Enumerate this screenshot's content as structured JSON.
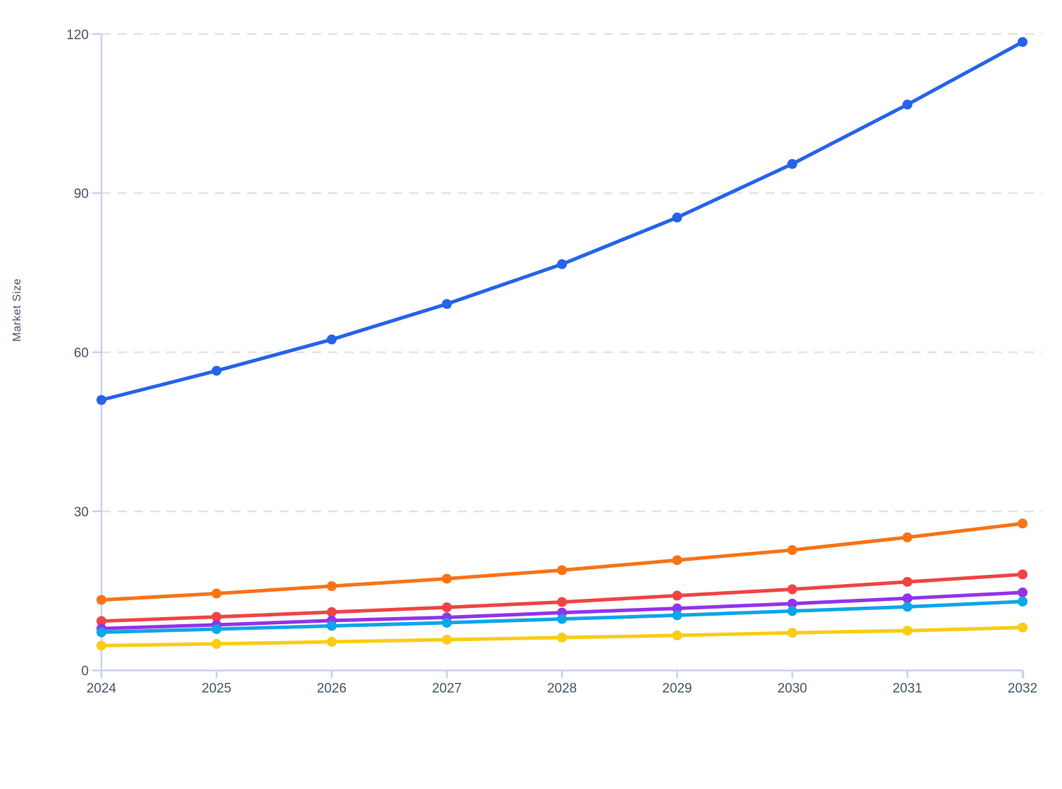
{
  "chart": {
    "ylabel": "Market Size",
    "colors": {
      "background": "#ffffff",
      "axis": "#c7d2f0",
      "grid": "#e3e3e3",
      "tick_text": "#475569"
    }
  },
  "chart_data": {
    "type": "line",
    "title": "",
    "xlabel": "",
    "ylabel": "Market Size",
    "x": [
      2024,
      2025,
      2026,
      2027,
      2028,
      2029,
      2030,
      2031,
      2032
    ],
    "series": [
      {
        "name": "blue-series",
        "color": "#2563eb",
        "values": [
          51.0,
          56.5,
          62.4,
          69.1,
          76.6,
          85.4,
          95.5,
          106.7,
          118.5
        ]
      },
      {
        "name": "orange-series",
        "color": "#f97316",
        "values": [
          13.3,
          14.5,
          15.9,
          17.3,
          18.9,
          20.8,
          22.7,
          25.1,
          27.7
        ]
      },
      {
        "name": "red-series",
        "color": "#ef4444",
        "values": [
          9.3,
          10.1,
          11.0,
          11.9,
          12.9,
          14.1,
          15.3,
          16.7,
          18.1
        ]
      },
      {
        "name": "purple-series",
        "color": "#9333ea",
        "values": [
          7.9,
          8.6,
          9.4,
          10.0,
          10.9,
          11.7,
          12.6,
          13.6,
          14.7
        ]
      },
      {
        "name": "sky-series",
        "color": "#0ea5e9",
        "values": [
          7.2,
          7.8,
          8.4,
          9.0,
          9.7,
          10.4,
          11.2,
          12.0,
          13.0
        ]
      },
      {
        "name": "yellow-series",
        "color": "#facc15",
        "values": [
          4.7,
          5.0,
          5.4,
          5.8,
          6.2,
          6.6,
          7.1,
          7.5,
          8.1
        ]
      }
    ],
    "ylim": [
      0,
      120
    ],
    "yticks": [
      0,
      30,
      60,
      90,
      120
    ],
    "xticks": [
      "2024",
      "2025",
      "2026",
      "2027",
      "2028",
      "2029",
      "2030",
      "2031",
      "2032"
    ],
    "grid": "dashed-horizontal",
    "legend": "none",
    "markers": true
  }
}
